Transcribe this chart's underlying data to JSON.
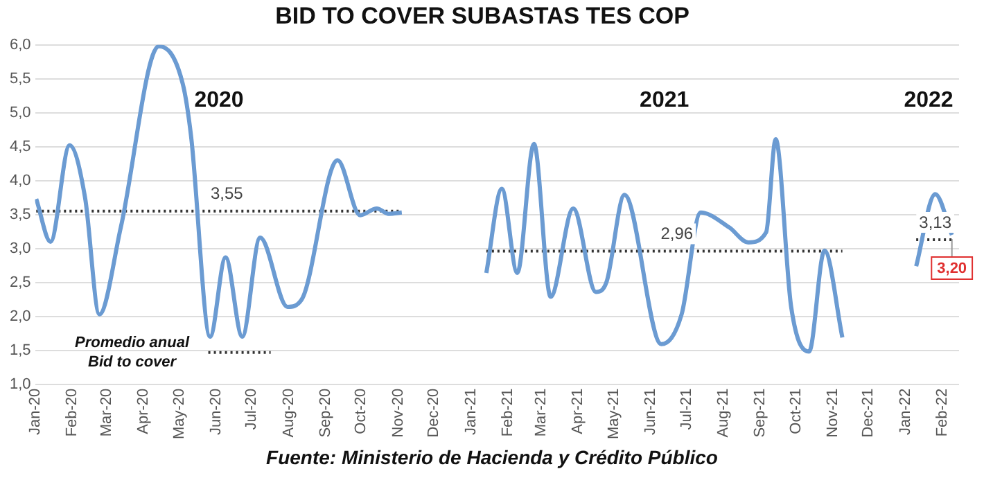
{
  "chart_data": {
    "type": "line",
    "title": "BID TO COVER SUBASTAS TES COP",
    "xlim": [
      "2020-01-01",
      "2022-02-15"
    ],
    "xticks": [
      {
        "value": "2020-01-01",
        "label": "Jan-20"
      },
      {
        "value": "2020-02-01",
        "label": "Feb-20"
      },
      {
        "value": "2020-03-01",
        "label": "Mar-20"
      },
      {
        "value": "2020-04-01",
        "label": "Apr-20"
      },
      {
        "value": "2020-05-01",
        "label": "May-20"
      },
      {
        "value": "2020-06-01",
        "label": "Jun-20"
      },
      {
        "value": "2020-07-01",
        "label": "Jul-20"
      },
      {
        "value": "2020-08-01",
        "label": "Aug-20"
      },
      {
        "value": "2020-09-01",
        "label": "Sep-20"
      },
      {
        "value": "2020-10-01",
        "label": "Oct-20"
      },
      {
        "value": "2020-11-01",
        "label": "Nov-20"
      },
      {
        "value": "2020-12-01",
        "label": "Dec-20"
      },
      {
        "value": "2021-01-01",
        "label": "Jan-21"
      },
      {
        "value": "2021-02-01",
        "label": "Feb-21"
      },
      {
        "value": "2021-03-01",
        "label": "Mar-21"
      },
      {
        "value": "2021-04-01",
        "label": "Apr-21"
      },
      {
        "value": "2021-05-01",
        "label": "May-21"
      },
      {
        "value": "2021-06-01",
        "label": "Jun-21"
      },
      {
        "value": "2021-07-01",
        "label": "Jul-21"
      },
      {
        "value": "2021-08-01",
        "label": "Aug-21"
      },
      {
        "value": "2021-09-01",
        "label": "Sep-21"
      },
      {
        "value": "2021-10-01",
        "label": "Oct-21"
      },
      {
        "value": "2021-11-01",
        "label": "Nov-21"
      },
      {
        "value": "2021-12-01",
        "label": "Dec-21"
      },
      {
        "value": "2022-01-01",
        "label": "Jan-22"
      },
      {
        "value": "2022-02-01",
        "label": "Feb-22"
      }
    ],
    "ylim": [
      1.0,
      6.0
    ],
    "yticks": [
      {
        "value": 1.0,
        "label": "1,0"
      },
      {
        "value": 1.5,
        "label": "1,5"
      },
      {
        "value": 2.0,
        "label": "2,0"
      },
      {
        "value": 2.5,
        "label": "2,5"
      },
      {
        "value": 3.0,
        "label": "3,0"
      },
      {
        "value": 3.5,
        "label": "3,5"
      },
      {
        "value": 4.0,
        "label": "4,0"
      },
      {
        "value": 4.5,
        "label": "4,5"
      },
      {
        "value": 5.0,
        "label": "5,0"
      },
      {
        "value": 5.5,
        "label": "5,5"
      },
      {
        "value": 6.0,
        "label": "6,0"
      }
    ],
    "grid": "y",
    "legend": "bottom left",
    "marker": "none",
    "series": [
      {
        "color": "#6b9bd2",
        "line_style": "solid",
        "x": [
          "2020-01-02",
          "2020-01-14",
          "2020-01-30",
          "2020-02-12",
          "2020-02-24",
          "2020-03-13",
          "2020-04-14",
          "2020-05-04",
          "2020-05-11",
          "2020-05-27",
          "2020-06-09",
          "2020-06-23",
          "2020-07-08",
          "2020-07-31",
          "2020-08-12",
          "2020-09-11",
          "2020-09-30",
          "2020-10-14",
          "2020-10-24",
          "2020-11-04",
          "2020-12-15",
          "2021-01-14",
          "2021-01-27",
          "2021-02-09",
          "2021-02-23",
          "2021-03-09",
          "2021-03-28",
          "2021-04-16",
          "2021-04-25",
          "2021-05-10",
          "2021-06-10",
          "2021-06-27",
          "2021-07-13",
          "2021-08-06",
          "2021-08-22",
          "2021-09-06",
          "2021-09-14",
          "2021-09-27",
          "2021-10-12",
          "2021-10-25",
          "2021-11-09",
          "2021-12-15",
          "2022-01-10",
          "2022-01-26",
          "2022-02-09"
        ],
        "values": [
          3.73,
          3.1,
          4.52,
          3.75,
          2.03,
          3.31,
          5.98,
          5.43,
          4.66,
          1.7,
          2.87,
          1.7,
          3.16,
          2.14,
          2.25,
          4.3,
          3.49,
          3.59,
          3.51,
          3.53,
          null,
          2.64,
          3.88,
          2.64,
          4.54,
          2.29,
          3.59,
          2.36,
          2.51,
          3.79,
          1.59,
          2.03,
          3.53,
          3.31,
          3.09,
          3.24,
          4.61,
          2.14,
          1.48,
          2.97,
          1.69,
          null,
          2.74,
          3.8,
          3.2
        ],
        "value_labels": [
          null,
          null,
          null,
          null,
          null,
          null,
          null,
          null,
          null,
          null,
          null,
          null,
          null,
          null,
          null,
          null,
          null,
          null,
          null,
          null,
          null,
          null,
          null,
          null,
          null,
          null,
          null,
          null,
          null,
          null,
          null,
          null,
          null,
          null,
          null,
          null,
          null,
          null,
          null,
          null,
          null,
          null,
          null,
          null,
          "3,20"
        ]
      },
      {
        "name": "Promedio anual Bid to cover",
        "color": "#333333",
        "line_style": "dotted",
        "x": [
          "2020-01-02",
          "2020-06-10",
          "2020-11-04",
          "2020-12-15",
          "2021-01-14",
          "2021-06-23",
          "2021-11-09",
          "2021-12-15",
          "2022-01-10",
          "2022-01-26",
          "2022-02-09"
        ],
        "values": [
          3.55,
          3.55,
          3.55,
          null,
          2.96,
          2.96,
          2.96,
          null,
          3.13,
          3.13,
          3.13
        ],
        "value_labels": [
          null,
          "3,55",
          null,
          null,
          null,
          "2,96",
          null,
          null,
          null,
          "3,13",
          null
        ]
      }
    ],
    "annotations": [
      "2020",
      "2021",
      "2022",
      "Fuente: Ministerio de Hacienda y Crédito Público"
    ]
  }
}
